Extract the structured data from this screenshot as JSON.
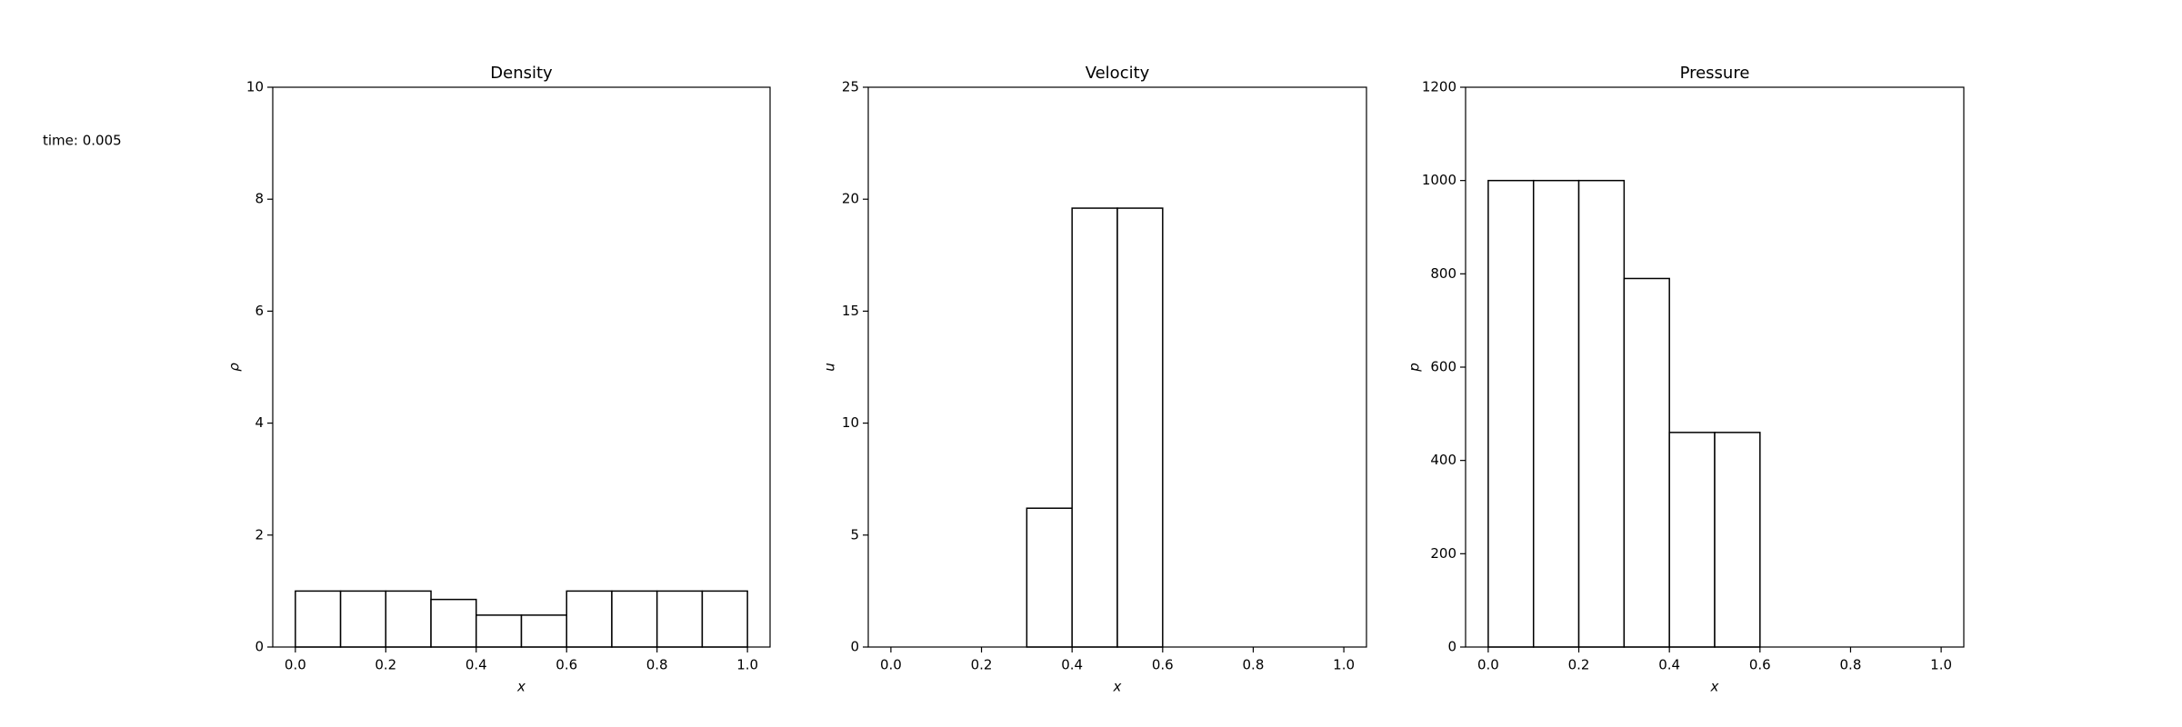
{
  "chart_data": [
    {
      "type": "histogram",
      "title": "Density",
      "annotation": "time: 0.005",
      "xlabel": "x",
      "ylabel": "ρ",
      "bins": [
        0,
        0.1,
        0.2,
        0.3,
        0.4,
        0.5,
        0.6,
        0.7,
        0.8,
        0.9,
        1.0
      ],
      "values": [
        1,
        1,
        1,
        0.85,
        0.57,
        0.57,
        1,
        1,
        1,
        1
      ],
      "color": "#ffffff",
      "edgecolor": "#000000",
      "xlim": [
        -0.05,
        1.05
      ],
      "ylim": [
        0,
        10
      ],
      "xticks": [
        {
          "value": 0,
          "label": "0.0"
        },
        {
          "value": 0.2,
          "label": "0.2"
        },
        {
          "value": 0.4,
          "label": "0.4"
        },
        {
          "value": 0.6,
          "label": "0.6"
        },
        {
          "value": 0.8,
          "label": "0.8"
        },
        {
          "value": 1.0,
          "label": "1.0"
        }
      ],
      "yticks": [
        0,
        2,
        4,
        6,
        8,
        10
      ],
      "grid": false
    },
    {
      "type": "histogram",
      "title": "Velocity",
      "xlabel": "x",
      "ylabel": "u",
      "bins": [
        0,
        0.1,
        0.2,
        0.3,
        0.4,
        0.5,
        0.6,
        0.7,
        0.8,
        0.9,
        1.0
      ],
      "values": [
        0,
        0,
        0,
        6.2,
        19.6,
        19.6,
        0,
        0,
        0,
        0
      ],
      "color": "#ffffff",
      "edgecolor": "#000000",
      "xlim": [
        -0.05,
        1.05
      ],
      "ylim": [
        0,
        25
      ],
      "xticks": [
        {
          "value": 0,
          "label": "0.0"
        },
        {
          "value": 0.2,
          "label": "0.2"
        },
        {
          "value": 0.4,
          "label": "0.4"
        },
        {
          "value": 0.6,
          "label": "0.6"
        },
        {
          "value": 0.8,
          "label": "0.8"
        },
        {
          "value": 1.0,
          "label": "1.0"
        }
      ],
      "yticks": [
        0,
        5,
        10,
        15,
        20,
        25
      ],
      "grid": false
    },
    {
      "type": "histogram",
      "title": "Pressure",
      "xlabel": "x",
      "ylabel": "p",
      "bins": [
        0,
        0.1,
        0.2,
        0.3,
        0.4,
        0.5,
        0.6,
        0.7,
        0.8,
        0.9,
        1.0
      ],
      "values": [
        1000,
        1000,
        1000,
        790,
        460,
        460,
        0,
        0,
        0,
        0
      ],
      "color": "#ffffff",
      "edgecolor": "#000000",
      "xlim": [
        -0.05,
        1.05
      ],
      "ylim": [
        0,
        1200
      ],
      "xticks": [
        {
          "value": 0,
          "label": "0.0"
        },
        {
          "value": 0.2,
          "label": "0.2"
        },
        {
          "value": 0.4,
          "label": "0.4"
        },
        {
          "value": 0.6,
          "label": "0.6"
        },
        {
          "value": 0.8,
          "label": "0.8"
        },
        {
          "value": 1.0,
          "label": "1.0"
        }
      ],
      "yticks": [
        0,
        200,
        400,
        600,
        800,
        1000,
        1200
      ],
      "grid": false
    }
  ]
}
